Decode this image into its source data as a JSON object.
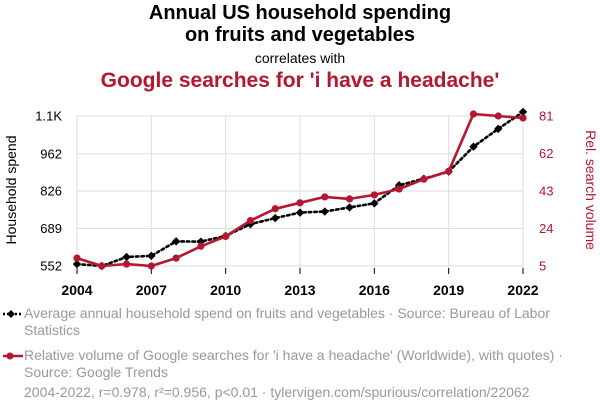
{
  "title": {
    "line1": "Annual US household spending",
    "line2": "on fruits and vegetables",
    "connector": "correlates with",
    "line3": "Google searches for 'i have a headache'"
  },
  "chart_data": {
    "type": "line",
    "x": [
      2004,
      2005,
      2006,
      2007,
      2008,
      2009,
      2010,
      2011,
      2012,
      2013,
      2014,
      2015,
      2016,
      2017,
      2018,
      2019,
      2020,
      2021,
      2022
    ],
    "series": [
      {
        "name": "Average annual household spend on fruits and vegetables",
        "axis": "left",
        "color": "#000000",
        "style": "dotted",
        "marker": "diamond",
        "values": [
          559,
          552,
          585,
          589,
          642,
          641,
          662,
          705,
          727,
          747,
          751,
          766,
          781,
          847,
          871,
          897,
          988,
          1053,
          1115
        ]
      },
      {
        "name": "Relative volume of Google searches for 'i have a headache'",
        "axis": "right",
        "color": "#b5172e",
        "style": "solid",
        "marker": "circle",
        "values": [
          9,
          5,
          6,
          5,
          9,
          15,
          20,
          28,
          34,
          37,
          40,
          39,
          41,
          44,
          49,
          53,
          82,
          81,
          80
        ]
      }
    ],
    "ylabel_left": "Household spend",
    "ylabel_right": "Rel. search volume",
    "yticks_left": [
      552,
      689,
      826,
      962,
      1100
    ],
    "ytick_labels_left": [
      "552",
      "689",
      "826",
      "962",
      "1.1K"
    ],
    "ylim_left": [
      552,
      1100
    ],
    "yticks_right": [
      5,
      24,
      43,
      62,
      81
    ],
    "ylim_right": [
      5,
      81
    ],
    "xticks": [
      2004,
      2007,
      2010,
      2013,
      2016,
      2019,
      2022
    ],
    "xlim": [
      2004,
      2022
    ]
  },
  "legend": {
    "series1": "Average annual household spend on fruits and vegetables · Source: Bureau of Labor Statistics",
    "series2": "Relative volume of Google searches for 'i have a headache' (Worldwide), with quotes) · Source: Google Trends"
  },
  "footer": "2004-2022, r=0.978, r²=0.956, p<0.01 · tylervigen.com/spurious/correlation/22062"
}
